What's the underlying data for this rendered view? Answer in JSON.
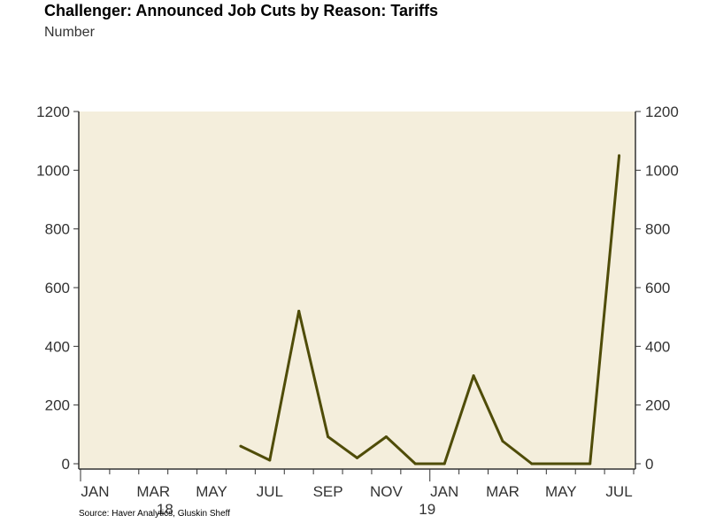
{
  "title": "Challenger: Announced Job Cuts by Reason: Tariffs",
  "subtitle": "Number",
  "source": "Source: Haver Analytics, Gluskin Sheff",
  "colors": {
    "plot_bg": "#f4eedc",
    "line": "#4f4c08",
    "axis": "#333333"
  },
  "chart_data": {
    "type": "line",
    "title": "Challenger: Announced Job Cuts by Reason: Tariffs",
    "ylabel": "Number",
    "xlabel": "",
    "ylim": [
      0,
      1200
    ],
    "yticks": [
      "0",
      "200",
      "400",
      "600",
      "800",
      "1000",
      "1200"
    ],
    "xticks": [
      "JAN",
      "MAR",
      "MAY",
      "JUL",
      "SEP",
      "NOV",
      "JAN",
      "MAR",
      "MAY",
      "JUL"
    ],
    "year_labels": [
      "18",
      "19"
    ],
    "x": [
      "Jun 2018",
      "Jul 2018",
      "Aug 2018",
      "Sep 2018",
      "Oct 2018",
      "Nov 2018",
      "Dec 2018",
      "Jan 2019",
      "Feb 2019",
      "Mar 2019",
      "Apr 2019",
      "May 2019",
      "Jun 2019",
      "Jul 2019"
    ],
    "series": [
      {
        "name": "Tariffs",
        "values": [
          60,
          12,
          520,
          92,
          20,
          92,
          0,
          0,
          300,
          77,
          0,
          0,
          0,
          1050
        ]
      }
    ],
    "grid": false,
    "legend": "none"
  }
}
